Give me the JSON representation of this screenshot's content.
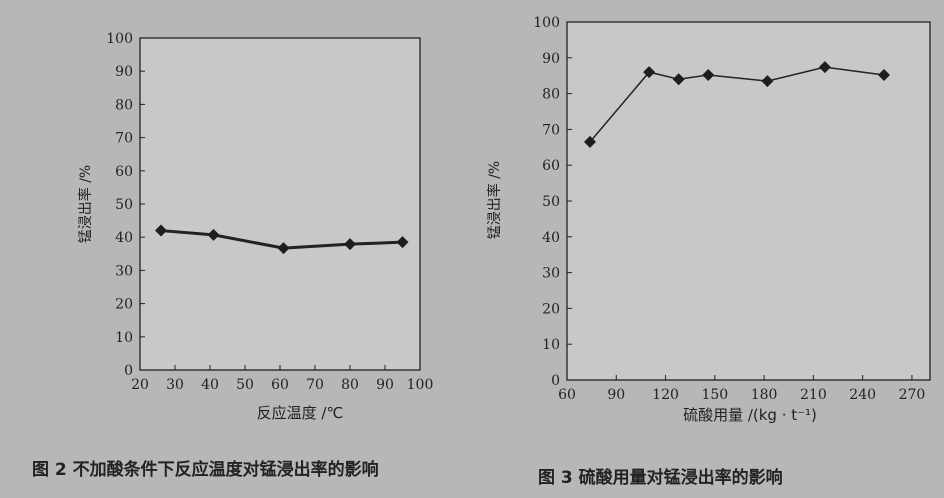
{
  "chart_data": [
    {
      "type": "line",
      "caption": "图 2  不加酸条件下反应温度对锰浸出率的影响",
      "xlabel": "反应温度 /℃",
      "ylabel": "锰浸出率 /%",
      "xlim": [
        20,
        100
      ],
      "ylim": [
        0,
        100
      ],
      "xticks": [
        20,
        30,
        40,
        50,
        60,
        70,
        80,
        90,
        100
      ],
      "yticks": [
        0,
        10,
        20,
        30,
        40,
        50,
        60,
        70,
        80,
        90,
        100
      ],
      "x": [
        26,
        41,
        61,
        80,
        95
      ],
      "y": [
        42,
        40.7,
        36.7,
        37.9,
        38.5
      ],
      "grid": false,
      "marker": "diamond"
    },
    {
      "type": "line",
      "caption": "图 3  硫酸用量对锰浸出率的影响",
      "xlabel": "硫酸用量 /(kg · t⁻¹)",
      "ylabel": "锰浸出率 /%",
      "xlim": [
        60,
        281
      ],
      "ylim": [
        0,
        100
      ],
      "xticks": [
        60,
        90,
        120,
        150,
        180,
        210,
        240,
        270
      ],
      "yticks": [
        0,
        10,
        20,
        30,
        40,
        50,
        60,
        70,
        80,
        90,
        100
      ],
      "x": [
        74,
        110,
        128,
        146,
        182,
        217,
        253
      ],
      "y": [
        66.5,
        86,
        84,
        85.2,
        83.5,
        87.4,
        85.2
      ],
      "grid": false,
      "marker": "diamond"
    }
  ]
}
